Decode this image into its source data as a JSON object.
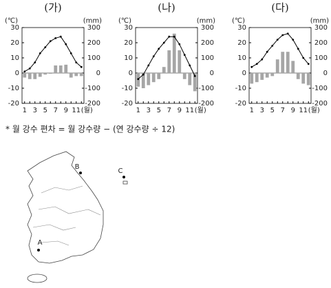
{
  "chart_data": [
    {
      "type": "combo",
      "title": "(가)",
      "ylabel": "(℃)",
      "y2label": "(mm)",
      "xlabel": "(월)",
      "categories": [
        "1",
        null,
        "3",
        null,
        "5",
        null,
        "7",
        null,
        "9",
        null,
        "11",
        null
      ],
      "series": [
        {
          "type": "line",
          "color": "#000000",
          "values": [
            1,
            3,
            7,
            13,
            17,
            21,
            23,
            24,
            19,
            13,
            7,
            4
          ]
        },
        {
          "type": "bar",
          "axis": "y2",
          "color": "#a6a6a6",
          "values": [
            -30,
            -40,
            -40,
            -25,
            -10,
            -5,
            50,
            50,
            55,
            -30,
            -20,
            -20
          ]
        }
      ],
      "ylim": [
        -20,
        30
      ],
      "yticks": [
        -20,
        -10,
        0,
        10,
        20,
        30
      ],
      "y2lim": [
        -200,
        300
      ],
      "y2ticks": [
        -200,
        -100,
        0,
        100,
        200,
        300
      ]
    },
    {
      "type": "combo",
      "title": "(나)",
      "ylabel": "(℃)",
      "y2label": "(mm)",
      "xlabel": "(월)",
      "categories": [
        "1",
        null,
        "3",
        null,
        "5",
        null,
        "7",
        null,
        "9",
        null,
        "11",
        null
      ],
      "series": [
        {
          "type": "line",
          "color": "#000000",
          "values": [
            -4,
            -1,
            5,
            11,
            16,
            20,
            24,
            24,
            19,
            12,
            5,
            -2
          ]
        },
        {
          "type": "bar",
          "axis": "y2",
          "color": "#a6a6a6",
          "values": [
            -90,
            -100,
            -80,
            -60,
            -40,
            40,
            150,
            260,
            150,
            -40,
            -80,
            -120
          ]
        }
      ],
      "ylim": [
        -20,
        30
      ],
      "yticks": [
        -20,
        -10,
        0,
        10,
        20,
        30
      ],
      "y2lim": [
        -200,
        300
      ],
      "y2ticks": [
        -200,
        -100,
        0,
        100,
        200,
        300
      ]
    },
    {
      "type": "combo",
      "title": "(다)",
      "ylabel": "(℃)",
      "y2label": "(mm)",
      "xlabel": "(월)",
      "categories": [
        "1",
        null,
        "3",
        null,
        "5",
        null,
        "7",
        null,
        "9",
        null,
        "11",
        null
      ],
      "series": [
        {
          "type": "line",
          "color": "#000000",
          "values": [
            4,
            6,
            9,
            14,
            18,
            22,
            25,
            26,
            22,
            16,
            10,
            6
          ]
        },
        {
          "type": "bar",
          "axis": "y2",
          "color": "#a6a6a6",
          "values": [
            -70,
            -60,
            -45,
            -30,
            -20,
            90,
            140,
            140,
            80,
            -40,
            -70,
            -80
          ]
        }
      ],
      "ylim": [
        -20,
        30
      ],
      "yticks": [
        -20,
        -10,
        0,
        10,
        20,
        30
      ],
      "y2lim": [
        -200,
        300
      ],
      "y2ticks": [
        -200,
        -100,
        0,
        100,
        200,
        300
      ]
    }
  ],
  "note": "* 월 강수 편차 = 월 강수량 − (연 강수량 ÷ 12)",
  "map": {
    "labels": [
      "A",
      "B",
      "C"
    ]
  }
}
